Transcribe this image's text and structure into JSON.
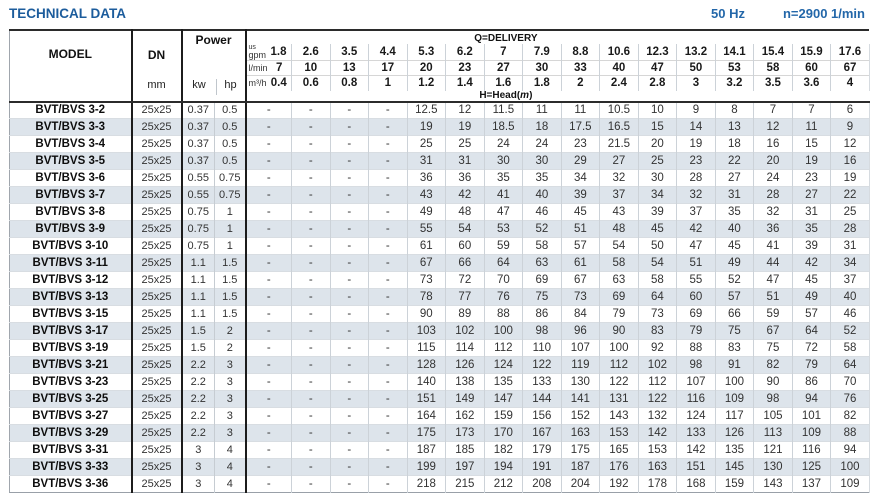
{
  "page": {
    "title": "TECHNICAL DATA",
    "frequency": "50 Hz",
    "speed": "n=2900 1/min",
    "accent_color": "#1c5c9c",
    "stripe_color": "#dde4eb"
  },
  "table": {
    "headers": {
      "model": "MODEL",
      "dn": "DN",
      "dn_unit": "mm",
      "power": "Power",
      "power_units": [
        "kw",
        "hp"
      ],
      "delivery_label": "Q=DELIVERY",
      "head_label_prefix": "H=Head(",
      "head_unit": "m",
      "head_label_suffix": ")",
      "unit_rows": [
        {
          "label_lines": [
            "us",
            "gpm"
          ],
          "values": [
            "1.8",
            "2.6",
            "3.5",
            "4.4",
            "5.3",
            "6.2",
            "7",
            "7.9",
            "8.8",
            "10.6",
            "12.3",
            "13.2",
            "14.1",
            "15.4",
            "15.9",
            "17.6"
          ]
        },
        {
          "label_lines": [
            "l/min"
          ],
          "values": [
            "7",
            "10",
            "13",
            "17",
            "20",
            "23",
            "27",
            "30",
            "33",
            "40",
            "47",
            "50",
            "53",
            "58",
            "60",
            "67"
          ]
        },
        {
          "label_lines": [
            "m³/h"
          ],
          "values": [
            "0.4",
            "0.6",
            "0.8",
            "1",
            "1.2",
            "1.4",
            "1.6",
            "1.8",
            "2",
            "2.4",
            "2.8",
            "3",
            "3.2",
            "3.5",
            "3.6",
            "4"
          ]
        }
      ]
    },
    "rows": [
      {
        "model": "BVT/BVS 3-2",
        "dn": "25x25",
        "kw": "0.37",
        "hp": "0.5",
        "head": [
          "-",
          "-",
          "-",
          "-",
          "12.5",
          "12",
          "11.5",
          "11",
          "11",
          "10.5",
          "10",
          "9",
          "8",
          "7",
          "7",
          "6"
        ]
      },
      {
        "model": "BVT/BVS 3-3",
        "dn": "25x25",
        "kw": "0.37",
        "hp": "0.5",
        "head": [
          "-",
          "-",
          "-",
          "-",
          "19",
          "19",
          "18.5",
          "18",
          "17.5",
          "16.5",
          "15",
          "14",
          "13",
          "12",
          "11",
          "9"
        ]
      },
      {
        "model": "BVT/BVS 3-4",
        "dn": "25x25",
        "kw": "0.37",
        "hp": "0.5",
        "head": [
          "-",
          "-",
          "-",
          "-",
          "25",
          "25",
          "24",
          "24",
          "23",
          "21.5",
          "20",
          "19",
          "18",
          "16",
          "15",
          "12"
        ]
      },
      {
        "model": "BVT/BVS 3-5",
        "dn": "25x25",
        "kw": "0.37",
        "hp": "0.5",
        "head": [
          "-",
          "-",
          "-",
          "-",
          "31",
          "31",
          "30",
          "30",
          "29",
          "27",
          "25",
          "23",
          "22",
          "20",
          "19",
          "16"
        ]
      },
      {
        "model": "BVT/BVS 3-6",
        "dn": "25x25",
        "kw": "0.55",
        "hp": "0.75",
        "head": [
          "-",
          "-",
          "-",
          "-",
          "36",
          "36",
          "35",
          "35",
          "34",
          "32",
          "30",
          "28",
          "27",
          "24",
          "23",
          "19"
        ]
      },
      {
        "model": "BVT/BVS 3-7",
        "dn": "25x25",
        "kw": "0.55",
        "hp": "0.75",
        "head": [
          "-",
          "-",
          "-",
          "-",
          "43",
          "42",
          "41",
          "40",
          "39",
          "37",
          "34",
          "32",
          "31",
          "28",
          "27",
          "22"
        ]
      },
      {
        "model": "BVT/BVS 3-8",
        "dn": "25x25",
        "kw": "0.75",
        "hp": "1",
        "head": [
          "-",
          "-",
          "-",
          "-",
          "49",
          "48",
          "47",
          "46",
          "45",
          "43",
          "39",
          "37",
          "35",
          "32",
          "31",
          "25"
        ]
      },
      {
        "model": "BVT/BVS 3-9",
        "dn": "25x25",
        "kw": "0.75",
        "hp": "1",
        "head": [
          "-",
          "-",
          "-",
          "-",
          "55",
          "54",
          "53",
          "52",
          "51",
          "48",
          "45",
          "42",
          "40",
          "36",
          "35",
          "28"
        ]
      },
      {
        "model": "BVT/BVS 3-10",
        "dn": "25x25",
        "kw": "0.75",
        "hp": "1",
        "head": [
          "-",
          "-",
          "-",
          "-",
          "61",
          "60",
          "59",
          "58",
          "57",
          "54",
          "50",
          "47",
          "45",
          "41",
          "39",
          "31"
        ]
      },
      {
        "model": "BVT/BVS 3-11",
        "dn": "25x25",
        "kw": "1.1",
        "hp": "1.5",
        "head": [
          "-",
          "-",
          "-",
          "-",
          "67",
          "66",
          "64",
          "63",
          "61",
          "58",
          "54",
          "51",
          "49",
          "44",
          "42",
          "34"
        ]
      },
      {
        "model": "BVT/BVS 3-12",
        "dn": "25x25",
        "kw": "1.1",
        "hp": "1.5",
        "head": [
          "-",
          "-",
          "-",
          "-",
          "73",
          "72",
          "70",
          "69",
          "67",
          "63",
          "58",
          "55",
          "52",
          "47",
          "45",
          "37"
        ]
      },
      {
        "model": "BVT/BVS 3-13",
        "dn": "25x25",
        "kw": "1.1",
        "hp": "1.5",
        "head": [
          "-",
          "-",
          "-",
          "-",
          "78",
          "77",
          "76",
          "75",
          "73",
          "69",
          "64",
          "60",
          "57",
          "51",
          "49",
          "40"
        ]
      },
      {
        "model": "BVT/BVS 3-15",
        "dn": "25x25",
        "kw": "1.1",
        "hp": "1.5",
        "head": [
          "-",
          "-",
          "-",
          "-",
          "90",
          "89",
          "88",
          "86",
          "84",
          "79",
          "73",
          "69",
          "66",
          "59",
          "57",
          "46"
        ]
      },
      {
        "model": "BVT/BVS 3-17",
        "dn": "25x25",
        "kw": "1.5",
        "hp": "2",
        "head": [
          "-",
          "-",
          "-",
          "-",
          "103",
          "102",
          "100",
          "98",
          "96",
          "90",
          "83",
          "79",
          "75",
          "67",
          "64",
          "52"
        ]
      },
      {
        "model": "BVT/BVS 3-19",
        "dn": "25x25",
        "kw": "1.5",
        "hp": "2",
        "head": [
          "-",
          "-",
          "-",
          "-",
          "115",
          "114",
          "112",
          "110",
          "107",
          "100",
          "92",
          "88",
          "83",
          "75",
          "72",
          "58"
        ]
      },
      {
        "model": "BVT/BVS 3-21",
        "dn": "25x25",
        "kw": "2.2",
        "hp": "3",
        "head": [
          "-",
          "-",
          "-",
          "-",
          "128",
          "126",
          "124",
          "122",
          "119",
          "112",
          "102",
          "98",
          "91",
          "82",
          "79",
          "64"
        ]
      },
      {
        "model": "BVT/BVS 3-23",
        "dn": "25x25",
        "kw": "2.2",
        "hp": "3",
        "head": [
          "-",
          "-",
          "-",
          "-",
          "140",
          "138",
          "135",
          "133",
          "130",
          "122",
          "112",
          "107",
          "100",
          "90",
          "86",
          "70"
        ]
      },
      {
        "model": "BVT/BVS 3-25",
        "dn": "25x25",
        "kw": "2.2",
        "hp": "3",
        "head": [
          "-",
          "-",
          "-",
          "-",
          "151",
          "149",
          "147",
          "144",
          "141",
          "131",
          "122",
          "116",
          "109",
          "98",
          "94",
          "76"
        ]
      },
      {
        "model": "BVT/BVS 3-27",
        "dn": "25x25",
        "kw": "2.2",
        "hp": "3",
        "head": [
          "-",
          "-",
          "-",
          "-",
          "164",
          "162",
          "159",
          "156",
          "152",
          "143",
          "132",
          "124",
          "117",
          "105",
          "101",
          "82"
        ]
      },
      {
        "model": "BVT/BVS 3-29",
        "dn": "25x25",
        "kw": "2.2",
        "hp": "3",
        "head": [
          "-",
          "-",
          "-",
          "-",
          "175",
          "173",
          "170",
          "167",
          "163",
          "153",
          "142",
          "133",
          "126",
          "113",
          "109",
          "88"
        ]
      },
      {
        "model": "BVT/BVS 3-31",
        "dn": "25x25",
        "kw": "3",
        "hp": "4",
        "head": [
          "-",
          "-",
          "-",
          "-",
          "187",
          "185",
          "182",
          "179",
          "175",
          "165",
          "153",
          "142",
          "135",
          "121",
          "116",
          "94"
        ]
      },
      {
        "model": "BVT/BVS 3-33",
        "dn": "25x25",
        "kw": "3",
        "hp": "4",
        "head": [
          "-",
          "-",
          "-",
          "-",
          "199",
          "197",
          "194",
          "191",
          "187",
          "176",
          "163",
          "151",
          "145",
          "130",
          "125",
          "100"
        ]
      },
      {
        "model": "BVT/BVS 3-36",
        "dn": "25x25",
        "kw": "3",
        "hp": "4",
        "head": [
          "-",
          "-",
          "-",
          "-",
          "218",
          "215",
          "212",
          "208",
          "204",
          "192",
          "178",
          "168",
          "159",
          "143",
          "137",
          "109"
        ]
      }
    ]
  }
}
